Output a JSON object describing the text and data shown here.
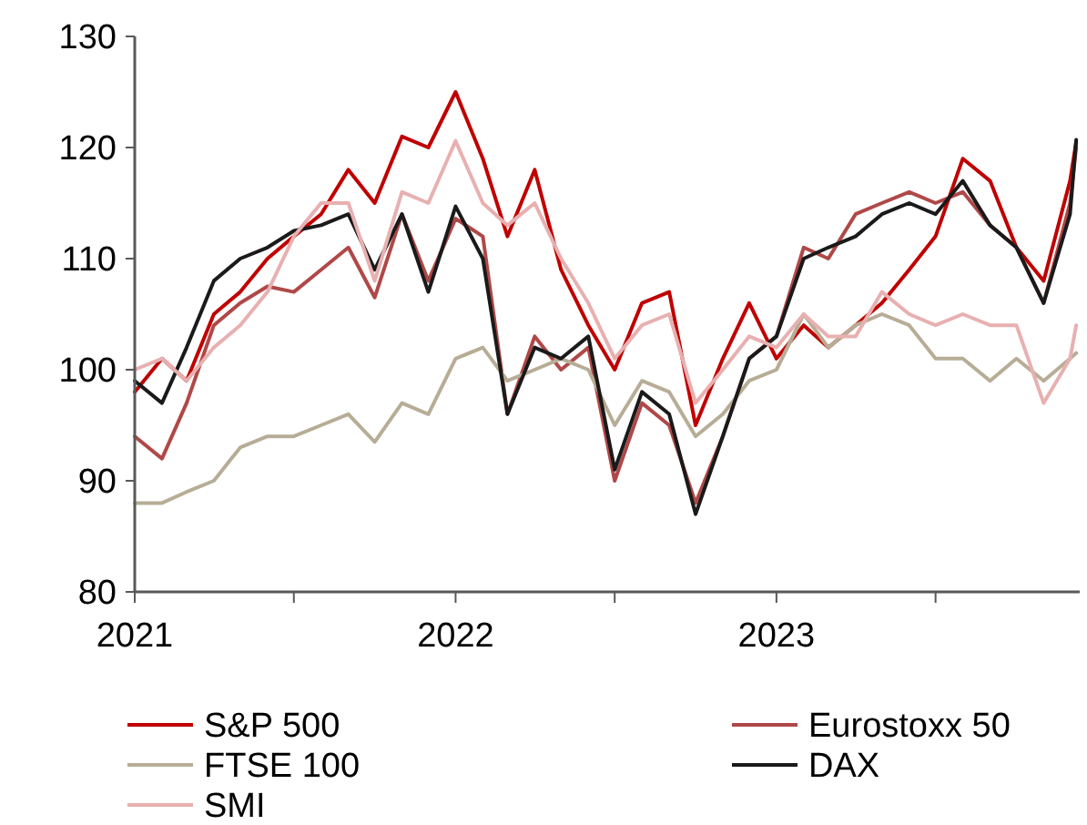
{
  "chart_data": {
    "type": "line",
    "x": [
      "2021-01-01",
      "2021-02-01",
      "2021-03-01",
      "2021-04-01",
      "2021-05-01",
      "2021-06-01",
      "2021-07-01",
      "2021-08-01",
      "2021-09-01",
      "2021-10-01",
      "2021-11-01",
      "2021-12-01",
      "2022-01-01",
      "2022-02-01",
      "2022-03-01",
      "2022-04-01",
      "2022-05-01",
      "2022-06-01",
      "2022-07-01",
      "2022-08-01",
      "2022-09-01",
      "2022-10-01",
      "2022-11-01",
      "2022-12-01",
      "2023-01-01",
      "2023-02-01",
      "2023-03-01",
      "2023-04-01",
      "2023-05-01",
      "2023-06-01",
      "2023-07-01",
      "2023-08-01",
      "2023-09-01",
      "2023-10-01",
      "2023-11-01",
      "2023-12-01",
      "2023-12-08"
    ],
    "series": [
      {
        "name": "S&P 500",
        "color": "#c00000",
        "values": [
          98,
          101,
          99,
          105,
          107,
          110,
          112,
          114,
          118,
          115,
          121,
          120,
          125,
          119,
          112,
          118,
          109,
          104,
          100,
          106,
          107,
          95,
          101,
          106,
          101,
          104,
          102,
          104,
          106,
          109,
          112,
          119,
          117,
          111,
          108,
          117,
          120.5
        ]
      },
      {
        "name": "Eurostoxx 50",
        "color": "#b04848",
        "values": [
          94,
          92,
          97,
          104,
          106,
          107.5,
          107,
          109,
          111,
          106.5,
          114,
          108,
          113.6,
          112,
          96,
          103,
          100,
          102,
          90,
          97,
          95,
          88,
          94,
          101,
          103,
          111,
          110,
          114,
          115,
          116,
          115,
          116,
          113,
          111,
          106,
          115,
          120
        ]
      },
      {
        "name": "FTSE 100",
        "color": "#b7ad96",
        "values": [
          88,
          88,
          89,
          90,
          93,
          94,
          94,
          95,
          96,
          93.5,
          97,
          96,
          101,
          102,
          99,
          100,
          101,
          100,
          95,
          99,
          98,
          94,
          96,
          99,
          100,
          105,
          102,
          104,
          105,
          104,
          101,
          101,
          99,
          101,
          99,
          101,
          101.5
        ]
      },
      {
        "name": "DAX",
        "color": "#1a1a1a",
        "values": [
          99,
          97,
          102,
          108,
          110,
          111,
          112.5,
          113,
          114,
          109,
          114,
          107,
          114.7,
          110,
          96,
          102,
          101,
          103,
          91,
          98,
          96,
          87,
          94,
          101,
          103,
          110,
          111,
          112,
          114,
          115,
          114,
          117,
          113,
          111,
          106,
          114,
          120.7
        ]
      },
      {
        "name": "SMI",
        "color": "#e8b0b0",
        "values": [
          100,
          101,
          99,
          102,
          104,
          107,
          112,
          115,
          115,
          108,
          116,
          115,
          120.6,
          115,
          113,
          115,
          110,
          106,
          101,
          104,
          105,
          97,
          100,
          103,
          102,
          105,
          103,
          103,
          107,
          105,
          104,
          105,
          104,
          104,
          97,
          101,
          104
        ]
      }
    ],
    "xlim": [
      "2021-01-01",
      "2023-12-12"
    ],
    "xticks": [
      {
        "value": "2021-01-01",
        "label": "2021"
      },
      {
        "value": "2021-07-01",
        "label": null
      },
      {
        "value": "2022-01-01",
        "label": "2022"
      },
      {
        "value": "2022-07-01",
        "label": null
      },
      {
        "value": "2023-01-01",
        "label": "2023"
      },
      {
        "value": "2023-07-01",
        "label": null
      }
    ],
    "ylim": [
      80,
      130
    ],
    "yticks": [
      80,
      90,
      100,
      110,
      120,
      130
    ],
    "grid": false,
    "legend": "bottom",
    "line_style": "solid"
  }
}
